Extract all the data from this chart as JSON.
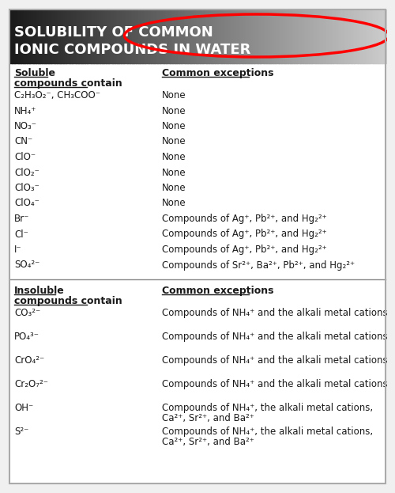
{
  "title_line1": "SOLUBILITY OF COMMON",
  "title_line2": "IONIC COMPOUNDS IN WATER",
  "title_text_color": "#ffffff",
  "border_color": "#aaaaaa",
  "background_color": "#f0f0f0",
  "soluble_header": "Soluble",
  "soluble_subheader": "compounds contain",
  "insoluble_header": "Insoluble",
  "insoluble_subheader": "compounds contain",
  "exceptions_header": "Common exceptions",
  "text_color": "#1a1a1a",
  "soluble_rows": [
    [
      "C₂H₃O₂⁻, CH₃COO⁻",
      "None"
    ],
    [
      "NH₄⁺",
      "None"
    ],
    [
      "NO₃⁻",
      "None"
    ],
    [
      "CN⁻",
      "None"
    ],
    [
      "ClO⁻",
      "None"
    ],
    [
      "ClO₂⁻",
      "None"
    ],
    [
      "ClO₃⁻",
      "None"
    ],
    [
      "ClO₄⁻",
      "None"
    ],
    [
      "Br⁻",
      "Compounds of Ag⁺, Pb²⁺, and Hg₂²⁺"
    ],
    [
      "Cl⁻",
      "Compounds of Ag⁺, Pb²⁺, and Hg₂²⁺"
    ],
    [
      "I⁻",
      "Compounds of Ag⁺, Pb²⁺, and Hg₂²⁺"
    ],
    [
      "SO₄²⁻",
      "Compounds of Sr²⁺, Ba²⁺, Pb²⁺, and Hg₂²⁺"
    ]
  ],
  "insoluble_rows": [
    [
      "CO₃²⁻",
      "Compounds of NH₄⁺ and the alkali metal cations"
    ],
    [
      "PO₄³⁻",
      "Compounds of NH₄⁺ and the alkali metal cations"
    ],
    [
      "CrO₄²⁻",
      "Compounds of NH₄⁺ and the alkali metal cations"
    ],
    [
      "Cr₂O₇²⁻",
      "Compounds of NH₄⁺ and the alkali metal cations"
    ],
    [
      "OH⁻",
      "Compounds of NH₄⁺, the alkali metal cations,\nCa²⁺, Sr²⁺, and Ba²⁺"
    ],
    [
      "S²⁻",
      "Compounds of NH₄⁺, the alkali metal cations,\nCa²⁺, Sr²⁺, and Ba²⁺"
    ]
  ]
}
